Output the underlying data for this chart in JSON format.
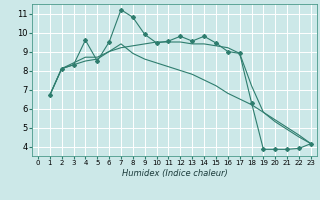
{
  "title": "",
  "xlabel": "Humidex (Indice chaleur)",
  "ylabel": "",
  "bg_color": "#cce8e8",
  "grid_color": "#ffffff",
  "line_color": "#2e7d6e",
  "xlim": [
    -0.5,
    23.5
  ],
  "ylim": [
    3.5,
    11.5
  ],
  "yticks": [
    4,
    5,
    6,
    7,
    8,
    9,
    10,
    11
  ],
  "xticks": [
    0,
    1,
    2,
    3,
    4,
    5,
    6,
    7,
    8,
    9,
    10,
    11,
    12,
    13,
    14,
    15,
    16,
    17,
    18,
    19,
    20,
    21,
    22,
    23
  ],
  "line1_x": [
    1,
    2,
    3,
    4,
    5,
    6,
    7,
    8,
    9,
    10,
    11,
    12,
    13,
    14,
    15,
    16,
    17,
    18,
    19,
    20,
    21,
    22,
    23
  ],
  "line1_y": [
    6.7,
    8.1,
    8.3,
    9.6,
    8.5,
    9.5,
    11.2,
    10.8,
    9.9,
    9.45,
    9.55,
    9.8,
    9.55,
    9.8,
    9.45,
    9.0,
    8.9,
    6.3,
    3.85,
    3.85,
    3.85,
    3.9,
    4.15
  ],
  "line2_x": [
    1,
    2,
    3,
    4,
    5,
    6,
    7,
    8,
    9,
    10,
    11,
    12,
    13,
    14,
    15,
    16,
    17,
    18,
    19,
    20,
    21,
    22,
    23
  ],
  "line2_y": [
    6.7,
    8.1,
    8.3,
    8.5,
    8.6,
    9.0,
    9.2,
    9.3,
    9.4,
    9.5,
    9.5,
    9.5,
    9.4,
    9.4,
    9.3,
    9.2,
    8.9,
    7.2,
    5.8,
    5.3,
    4.9,
    4.5,
    4.15
  ],
  "line3_x": [
    1,
    2,
    3,
    4,
    5,
    6,
    7,
    8,
    9,
    10,
    11,
    12,
    13,
    14,
    15,
    16,
    17,
    18,
    19,
    20,
    21,
    22,
    23
  ],
  "line3_y": [
    6.7,
    8.1,
    8.4,
    8.7,
    8.7,
    9.0,
    9.4,
    8.9,
    8.6,
    8.4,
    8.2,
    8.0,
    7.8,
    7.5,
    7.2,
    6.8,
    6.5,
    6.2,
    5.8,
    5.4,
    5.0,
    4.6,
    4.15
  ],
  "xlabel_fontsize": 6,
  "tick_fontsize": 5,
  "marker_size": 2.0,
  "line_width": 0.8
}
